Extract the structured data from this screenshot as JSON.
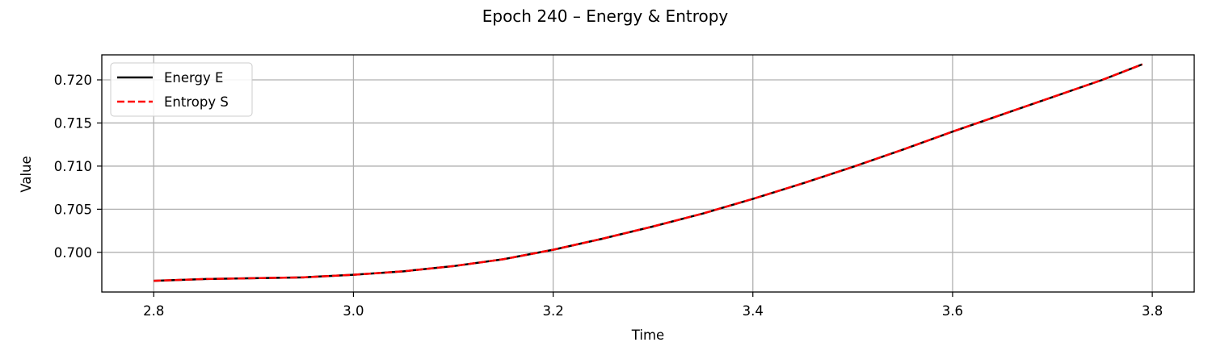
{
  "chart_data": {
    "type": "line",
    "title": "Epoch 240 – Energy & Entropy",
    "xlabel": "Time",
    "ylabel": "Value",
    "xlim": [
      2.748,
      3.842
    ],
    "ylim": [
      0.6954,
      0.7229
    ],
    "x_ticks": [
      2.8,
      3.0,
      3.2,
      3.4,
      3.6,
      3.8
    ],
    "x_tick_labels": [
      "2.8",
      "3.0",
      "3.2",
      "3.4",
      "3.6",
      "3.8"
    ],
    "y_ticks": [
      0.7,
      0.705,
      0.71,
      0.715,
      0.72
    ],
    "y_tick_labels": [
      "0.700",
      "0.705",
      "0.710",
      "0.715",
      "0.720"
    ],
    "grid": true,
    "legend_position": "top-left",
    "x": [
      2.8,
      2.85,
      2.9,
      2.95,
      3.0,
      3.05,
      3.1,
      3.15,
      3.2,
      3.25,
      3.3,
      3.35,
      3.4,
      3.45,
      3.5,
      3.55,
      3.6,
      3.65,
      3.7,
      3.75,
      3.79
    ],
    "series": [
      {
        "name": "Energy E",
        "color": "#000000",
        "dash": "solid",
        "values": [
          0.6967,
          0.6969,
          0.697,
          0.6971,
          0.6974,
          0.6978,
          0.6984,
          0.6992,
          0.7003,
          0.7016,
          0.703,
          0.7045,
          0.7062,
          0.708,
          0.7099,
          0.7119,
          0.714,
          0.716,
          0.718,
          0.72,
          0.7218
        ]
      },
      {
        "name": "Entropy S",
        "color": "#ff0000",
        "dash": "dashed",
        "values": [
          0.6967,
          0.6969,
          0.697,
          0.6971,
          0.6974,
          0.6978,
          0.6984,
          0.6992,
          0.7003,
          0.7016,
          0.703,
          0.7045,
          0.7062,
          0.708,
          0.7099,
          0.7119,
          0.714,
          0.716,
          0.718,
          0.72,
          0.7218
        ]
      }
    ]
  }
}
